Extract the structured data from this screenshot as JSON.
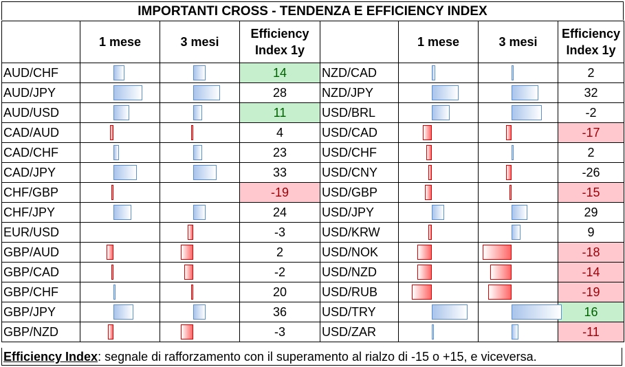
{
  "title": "IMPORTANTI CROSS - TENDENZA E EFFICIENCY INDEX",
  "headers": {
    "pair": "",
    "m1": "1 mese",
    "m3": "3 mesi",
    "eff_line1": "Efficiency",
    "eff_line2": "Index 1y"
  },
  "left": [
    {
      "pair": "AUD/CHF",
      "m1": 0.3,
      "m3": 0.35,
      "eff": "14",
      "status": "pos"
    },
    {
      "pair": "AUD/JPY",
      "m1": 0.8,
      "m3": 0.75,
      "eff": "28",
      "status": ""
    },
    {
      "pair": "AUD/USD",
      "m1": 0.45,
      "m3": 0.25,
      "eff": "11",
      "status": "pos"
    },
    {
      "pair": "CAD/AUD",
      "m1": -0.1,
      "m3": -0.05,
      "eff": "4",
      "status": ""
    },
    {
      "pair": "CAD/CHF",
      "m1": 0.15,
      "m3": 0.25,
      "eff": "23",
      "status": ""
    },
    {
      "pair": "CAD/JPY",
      "m1": 0.65,
      "m3": 0.65,
      "eff": "33",
      "status": ""
    },
    {
      "pair": "CHF/GBP",
      "m1": -0.05,
      "m3": 0.0,
      "eff": "-19",
      "status": "neg"
    },
    {
      "pair": "CHF/JPY",
      "m1": 0.5,
      "m3": 0.35,
      "eff": "24",
      "status": ""
    },
    {
      "pair": "EUR/USD",
      "m1": 0.0,
      "m3": -0.15,
      "eff": "-3",
      "status": ""
    },
    {
      "pair": "GBP/AUD",
      "m1": -0.2,
      "m3": -0.35,
      "eff": "2",
      "status": ""
    },
    {
      "pair": "GBP/CAD",
      "m1": -0.05,
      "m3": -0.25,
      "eff": "-2",
      "status": ""
    },
    {
      "pair": "GBP/CHF",
      "m1": 0.03,
      "m3": -0.03,
      "eff": "20",
      "status": ""
    },
    {
      "pair": "GBP/JPY",
      "m1": 0.55,
      "m3": 0.35,
      "eff": "36",
      "status": ""
    },
    {
      "pair": "GBP/NZD",
      "m1": -0.15,
      "m3": -0.35,
      "eff": "-3",
      "status": ""
    }
  ],
  "right": [
    {
      "pair": "NZD/CAD",
      "m1": 0.1,
      "m3": 0.05,
      "eff": "2",
      "status": ""
    },
    {
      "pair": "NZD/JPY",
      "m1": 0.75,
      "m3": 0.75,
      "eff": "32",
      "status": ""
    },
    {
      "pair": "USD/BRL",
      "m1": 0.5,
      "m3": 0.85,
      "eff": "-2",
      "status": ""
    },
    {
      "pair": "USD/CAD",
      "m1": -0.25,
      "m3": -0.15,
      "eff": "-17",
      "status": "neg"
    },
    {
      "pair": "USD/CHF",
      "m1": -0.15,
      "m3": 0.05,
      "eff": "2",
      "status": ""
    },
    {
      "pair": "USD/CNY",
      "m1": -0.1,
      "m3": -0.15,
      "eff": "-26",
      "status": ""
    },
    {
      "pair": "USD/GBP",
      "m1": -0.2,
      "m3": -0.02,
      "eff": "-15",
      "status": "neg"
    },
    {
      "pair": "USD/JPY",
      "m1": 0.35,
      "m3": 0.45,
      "eff": "29",
      "status": ""
    },
    {
      "pair": "USD/KRW",
      "m1": -0.1,
      "m3": 0.25,
      "eff": "9",
      "status": ""
    },
    {
      "pair": "USD/NOK",
      "m1": -0.4,
      "m3": -0.8,
      "eff": "-18",
      "status": "neg"
    },
    {
      "pair": "USD/NZD",
      "m1": -0.4,
      "m3": -0.6,
      "eff": "-14",
      "status": "neg"
    },
    {
      "pair": "USD/RUB",
      "m1": -0.55,
      "m3": -0.65,
      "eff": "-19",
      "status": "neg"
    },
    {
      "pair": "USD/TRY",
      "m1": 1.0,
      "m3": 1.4,
      "eff": "16",
      "status": "pos"
    },
    {
      "pair": "USD/ZAR",
      "m1": 0.02,
      "m3": 0.2,
      "eff": "-11",
      "status": "neg"
    }
  ],
  "footer": {
    "label": "Efficiency Index",
    "text": ": segnale di rafforzamento con il superamento al rialzo di -15 o +15, e viceversa."
  }
}
